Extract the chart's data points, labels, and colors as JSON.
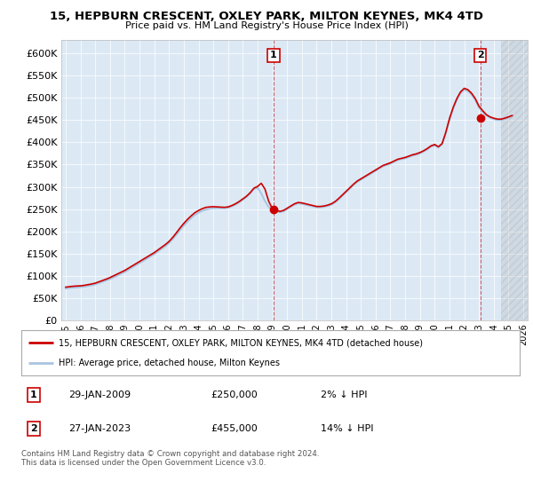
{
  "title": "15, HEPBURN CRESCENT, OXLEY PARK, MILTON KEYNES, MK4 4TD",
  "subtitle": "Price paid vs. HM Land Registry's House Price Index (HPI)",
  "ytick_values": [
    0,
    50000,
    100000,
    150000,
    200000,
    250000,
    300000,
    350000,
    400000,
    450000,
    500000,
    550000,
    600000
  ],
  "ylim": [
    0,
    630000
  ],
  "xlim_start": 1994.7,
  "xlim_end": 2026.3,
  "xtick_years": [
    1995,
    1996,
    1997,
    1998,
    1999,
    2000,
    2001,
    2002,
    2003,
    2004,
    2005,
    2006,
    2007,
    2008,
    2009,
    2010,
    2011,
    2012,
    2013,
    2014,
    2015,
    2016,
    2017,
    2018,
    2019,
    2020,
    2021,
    2022,
    2023,
    2024,
    2025,
    2026
  ],
  "hpi_line_color": "#a8c4e0",
  "price_line_color": "#cc0000",
  "sale_marker_color": "#cc0000",
  "plot_bg_color": "#dce9f5",
  "legend_label_property": "15, HEPBURN CRESCENT, OXLEY PARK, MILTON KEYNES, MK4 4TD (detached house)",
  "legend_label_hpi": "HPI: Average price, detached house, Milton Keynes",
  "sale1_year": 2009.08,
  "sale1_price": 250000,
  "sale1_label": "1",
  "sale2_year": 2023.08,
  "sale2_price": 455000,
  "sale2_label": "2",
  "footer": "Contains HM Land Registry data © Crown copyright and database right 2024.\nThis data is licensed under the Open Government Licence v3.0.",
  "hpi_data_x": [
    1995.0,
    1995.25,
    1995.5,
    1995.75,
    1996.0,
    1996.25,
    1996.5,
    1996.75,
    1997.0,
    1997.25,
    1997.5,
    1997.75,
    1998.0,
    1998.25,
    1998.5,
    1998.75,
    1999.0,
    1999.25,
    1999.5,
    1999.75,
    2000.0,
    2000.25,
    2000.5,
    2000.75,
    2001.0,
    2001.25,
    2001.5,
    2001.75,
    2002.0,
    2002.25,
    2002.5,
    2002.75,
    2003.0,
    2003.25,
    2003.5,
    2003.75,
    2004.0,
    2004.25,
    2004.5,
    2004.75,
    2005.0,
    2005.25,
    2005.5,
    2005.75,
    2006.0,
    2006.25,
    2006.5,
    2006.75,
    2007.0,
    2007.25,
    2007.5,
    2007.75,
    2008.0,
    2008.25,
    2008.5,
    2008.75,
    2009.0,
    2009.25,
    2009.5,
    2009.75,
    2010.0,
    2010.25,
    2010.5,
    2010.75,
    2011.0,
    2011.25,
    2011.5,
    2011.75,
    2012.0,
    2012.25,
    2012.5,
    2012.75,
    2013.0,
    2013.25,
    2013.5,
    2013.75,
    2014.0,
    2014.25,
    2014.5,
    2014.75,
    2015.0,
    2015.25,
    2015.5,
    2015.75,
    2016.0,
    2016.25,
    2016.5,
    2016.75,
    2017.0,
    2017.25,
    2017.5,
    2017.75,
    2018.0,
    2018.25,
    2018.5,
    2018.75,
    2019.0,
    2019.25,
    2019.5,
    2019.75,
    2020.0,
    2020.25,
    2020.5,
    2020.75,
    2021.0,
    2021.25,
    2021.5,
    2021.75,
    2022.0,
    2022.25,
    2022.5,
    2022.75,
    2023.0,
    2023.25,
    2023.5,
    2023.75,
    2024.0,
    2024.25,
    2024.5,
    2024.75,
    2025.0,
    2025.25
  ],
  "hpi_data_y": [
    72000,
    73000,
    74000,
    74500,
    75000,
    76000,
    77500,
    79000,
    81000,
    84000,
    87000,
    90000,
    93000,
    97000,
    101000,
    105000,
    109000,
    114000,
    119000,
    124000,
    129000,
    134000,
    139000,
    144000,
    149000,
    155000,
    161000,
    167000,
    174000,
    183000,
    193000,
    203000,
    213000,
    222000,
    230000,
    237000,
    242000,
    246000,
    249000,
    251000,
    252000,
    252000,
    252000,
    252000,
    253000,
    256000,
    260000,
    265000,
    271000,
    277000,
    285000,
    295000,
    298000,
    285000,
    268000,
    255000,
    248000,
    245000,
    243000,
    245000,
    250000,
    255000,
    260000,
    263000,
    262000,
    260000,
    258000,
    256000,
    254000,
    254000,
    255000,
    257000,
    260000,
    265000,
    272000,
    280000,
    288000,
    296000,
    304000,
    311000,
    316000,
    321000,
    326000,
    331000,
    336000,
    341000,
    346000,
    349000,
    352000,
    356000,
    360000,
    362000,
    364000,
    367000,
    370000,
    372000,
    375000,
    379000,
    384000,
    390000,
    393000,
    388000,
    395000,
    420000,
    450000,
    475000,
    495000,
    510000,
    518000,
    515000,
    507000,
    495000,
    478000,
    468000,
    460000,
    455000,
    452000,
    450000,
    450000,
    452000,
    455000,
    458000
  ],
  "price_data_x": [
    1995.0,
    1995.25,
    1995.5,
    1995.75,
    1996.0,
    1996.25,
    1996.5,
    1996.75,
    1997.0,
    1997.25,
    1997.5,
    1997.75,
    1998.0,
    1998.25,
    1998.5,
    1998.75,
    1999.0,
    1999.25,
    1999.5,
    1999.75,
    2000.0,
    2000.25,
    2000.5,
    2000.75,
    2001.0,
    2001.25,
    2001.5,
    2001.75,
    2002.0,
    2002.25,
    2002.5,
    2002.75,
    2003.0,
    2003.25,
    2003.5,
    2003.75,
    2004.0,
    2004.25,
    2004.5,
    2004.75,
    2005.0,
    2005.25,
    2005.5,
    2005.75,
    2006.0,
    2006.25,
    2006.5,
    2006.75,
    2007.0,
    2007.25,
    2007.5,
    2007.75,
    2008.0,
    2008.25,
    2008.5,
    2008.75,
    2009.0,
    2009.25,
    2009.5,
    2009.75,
    2010.0,
    2010.25,
    2010.5,
    2010.75,
    2011.0,
    2011.25,
    2011.5,
    2011.75,
    2012.0,
    2012.25,
    2012.5,
    2012.75,
    2013.0,
    2013.25,
    2013.5,
    2013.75,
    2014.0,
    2014.25,
    2014.5,
    2014.75,
    2015.0,
    2015.25,
    2015.5,
    2015.75,
    2016.0,
    2016.25,
    2016.5,
    2016.75,
    2017.0,
    2017.25,
    2017.5,
    2017.75,
    2018.0,
    2018.25,
    2018.5,
    2018.75,
    2019.0,
    2019.25,
    2019.5,
    2019.75,
    2020.0,
    2020.25,
    2020.5,
    2020.75,
    2021.0,
    2021.25,
    2021.5,
    2021.75,
    2022.0,
    2022.25,
    2022.5,
    2022.75,
    2023.0,
    2023.25,
    2023.5,
    2023.75,
    2024.0,
    2024.25,
    2024.5,
    2024.75,
    2025.0,
    2025.25
  ],
  "price_data_y": [
    75000,
    76000,
    77000,
    77500,
    78000,
    79000,
    80500,
    82000,
    84000,
    87000,
    90000,
    93000,
    96500,
    100500,
    104500,
    108500,
    112500,
    117500,
    122500,
    127500,
    132500,
    137500,
    142500,
    147500,
    152500,
    158500,
    164500,
    170500,
    177500,
    186500,
    197000,
    208000,
    218000,
    227000,
    235000,
    242000,
    247000,
    251000,
    254000,
    255000,
    255500,
    255000,
    254500,
    254000,
    255000,
    258000,
    262000,
    267000,
    273000,
    279000,
    287000,
    297000,
    301000,
    308000,
    295000,
    268000,
    251000,
    248000,
    245000,
    247000,
    252000,
    257000,
    262000,
    265000,
    264000,
    262000,
    260000,
    258000,
    256000,
    256000,
    257000,
    259000,
    262000,
    267000,
    274000,
    282000,
    290000,
    298000,
    306000,
    313000,
    318000,
    323000,
    328000,
    333000,
    338000,
    343000,
    348000,
    351000,
    354000,
    358000,
    362000,
    364000,
    366000,
    369000,
    372000,
    374000,
    377000,
    381000,
    386000,
    392000,
    395000,
    390000,
    397000,
    422000,
    453000,
    478000,
    498000,
    513000,
    521000,
    518000,
    510000,
    498000,
    481000,
    471000,
    462000,
    457000,
    454000,
    452000,
    452000,
    454000,
    457000,
    460000
  ]
}
